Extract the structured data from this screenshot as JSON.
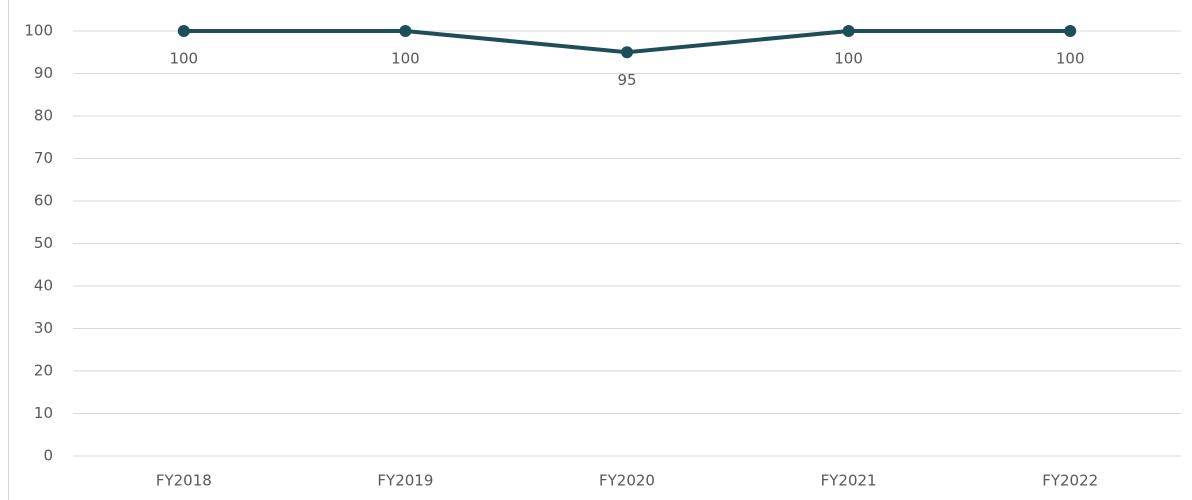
{
  "chart_data": {
    "type": "line",
    "categories": [
      "FY2018",
      "FY2019",
      "FY2020",
      "FY2021",
      "FY2022"
    ],
    "values": [
      100,
      100,
      95,
      100,
      100
    ],
    "color": "#1f4e5b",
    "ylim": [
      0,
      100
    ],
    "yticks": [
      0,
      10,
      20,
      30,
      40,
      50,
      60,
      70,
      80,
      90,
      100
    ],
    "grid": true
  }
}
